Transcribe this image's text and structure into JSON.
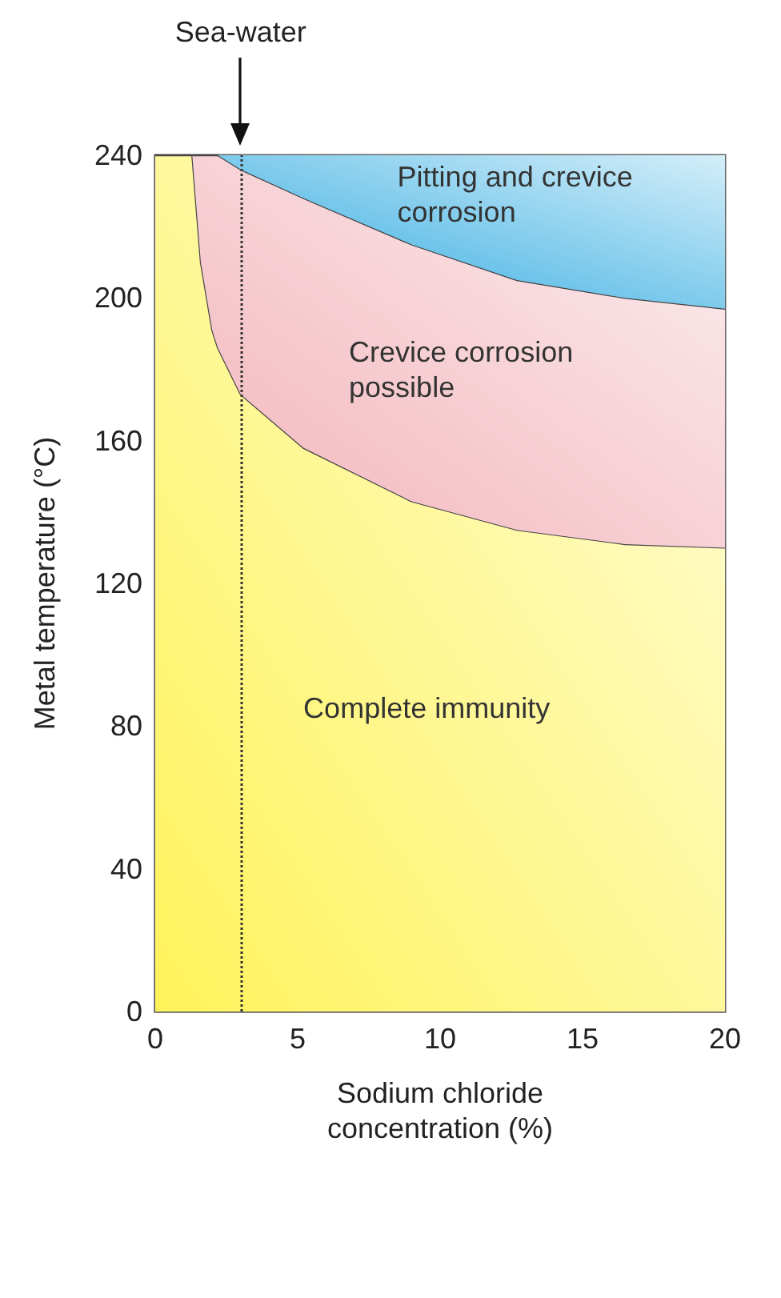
{
  "chart_data": {
    "type": "area",
    "xlabel": "Sodium chloride\nconcentration (%)",
    "ylabel": "Metal temperature (°C)",
    "xlim": [
      0,
      20
    ],
    "xticks": [
      0,
      5,
      10,
      15,
      20
    ],
    "ylim": [
      0,
      240
    ],
    "yticks": [
      0,
      40,
      80,
      120,
      160,
      200,
      240
    ],
    "series": [
      {
        "color": "#fff35a",
        "values": [
          240,
          240,
          210,
          191,
          186,
          173,
          158,
          143,
          135,
          131,
          130
        ]
      },
      {
        "color": "#f2b3ba",
        "values": [
          null,
          0,
          30,
          49,
          54,
          63,
          70,
          72,
          70,
          69,
          67
        ]
      },
      {
        "color": "#2aa8e0",
        "values": [
          null,
          null,
          null,
          null,
          0,
          4,
          12,
          25,
          35,
          40,
          43
        ]
      }
    ],
    "x": [
      0,
      1.3,
      1.6,
      2.0,
      2.2,
      3.0,
      5.2,
      9,
      12.7,
      16.5,
      20
    ],
    "stacked": true,
    "ref_lines": [
      {
        "axis": "x",
        "value": 3,
        "label": "Sea-water",
        "line_style": "dotted"
      }
    ],
    "annotations": [
      "Pitting and crevice\ncorrosion",
      "Crevice corrosion\npossible",
      "Complete immunity"
    ],
    "grid": false
  }
}
